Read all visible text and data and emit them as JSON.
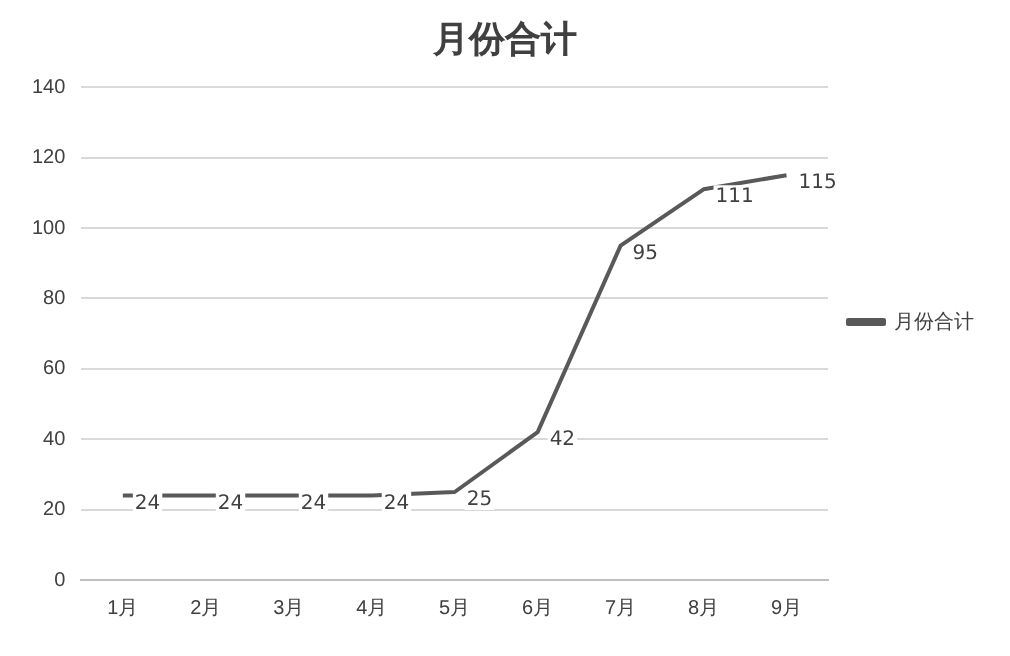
{
  "chart_data": {
    "type": "line",
    "title": "月份合计",
    "categories": [
      "1月",
      "2月",
      "3月",
      "4月",
      "5月",
      "6月",
      "7月",
      "8月",
      "9月"
    ],
    "series": [
      {
        "name": "月份合计",
        "color": "#595959",
        "values": [
          24,
          24,
          24,
          24,
          25,
          42,
          95,
          111,
          115
        ]
      }
    ],
    "ylim": [
      0,
      140
    ],
    "yticks": [
      0,
      20,
      40,
      60,
      80,
      100,
      120,
      140
    ],
    "grid": "y",
    "legend": "right",
    "marker": "none",
    "data_labels": true
  }
}
